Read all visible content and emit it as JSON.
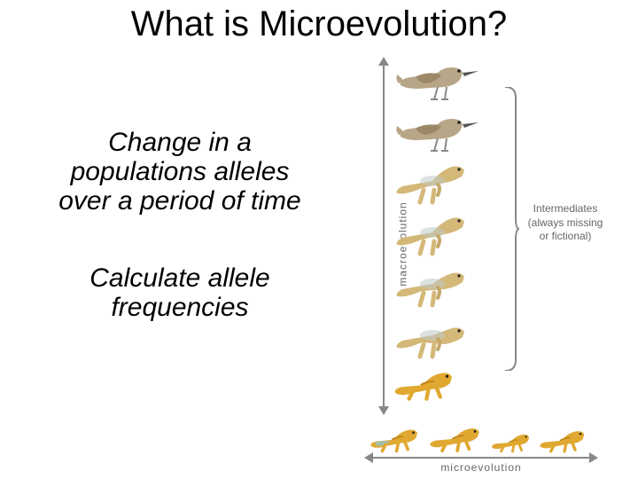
{
  "title": "What is Microevolution?",
  "left": {
    "p1": "Change in a populations alleles over a period of time",
    "p2": "Calculate allele frequencies"
  },
  "diagram": {
    "macro_label": "macroevolution",
    "micro_label": "microevolution",
    "intermediates_label": "Intermediates (always missing or fictional)",
    "axis_color": "#888888",
    "colors": {
      "bird_body": "#b8a688",
      "bird_wing": "#9c8868",
      "bird_beak": "#555555",
      "bird_legs": "#888888",
      "dino_body": "#d4b878",
      "dino_stripe": "#c0c8c8",
      "dino_arm": "#c4a868",
      "lizard_body": "#e0a830",
      "lizard_highlight": "#88c8d8",
      "lizard_dark": "#c08820"
    },
    "stack": [
      {
        "kind": "bird",
        "tail_len": 1.0,
        "body_angle": 0
      },
      {
        "kind": "birdish",
        "tail_len": 0.9
      },
      {
        "kind": "dino",
        "tail_len": 0.85,
        "stance": "up"
      },
      {
        "kind": "dino",
        "tail_len": 0.8,
        "stance": "up"
      },
      {
        "kind": "dino",
        "tail_len": 0.75,
        "stance": "mid"
      },
      {
        "kind": "dino",
        "tail_len": 0.7,
        "stance": "low"
      },
      {
        "kind": "lizard",
        "tail_len": 0.65
      }
    ],
    "row": [
      {
        "size": 1.0,
        "highlight": true
      },
      {
        "size": 1.05,
        "highlight": false
      },
      {
        "size": 0.8,
        "highlight": false
      },
      {
        "size": 0.95,
        "highlight": false
      }
    ]
  }
}
